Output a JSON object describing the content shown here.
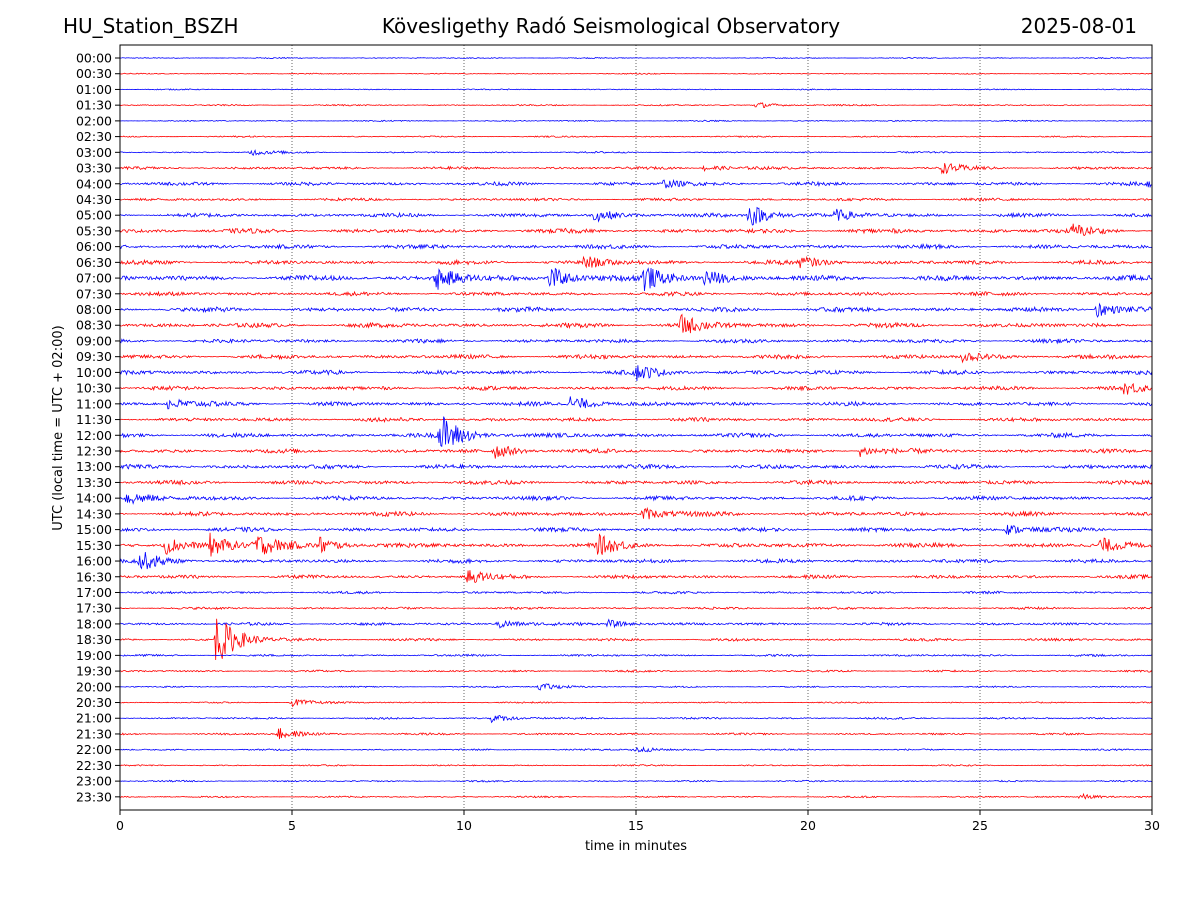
{
  "header": {
    "station": "HU_Station_BSZH",
    "title": "Kövesligethy Radó Seismological Observatory",
    "date": "2025-08-01"
  },
  "chart_data": {
    "type": "line",
    "title": "Kövesligethy Radó Seismological Observatory",
    "xlabel": "time in minutes",
    "ylabel": "UTC (local time = UTC + 02:00)",
    "xlim": [
      0,
      30
    ],
    "x_ticks": [
      0,
      5,
      10,
      15,
      20,
      25,
      30
    ],
    "grid": "vertical dotted at x ticks",
    "colors": [
      "#0000ff",
      "#ff0000"
    ],
    "rows": [
      "00:00",
      "00:30",
      "01:00",
      "01:30",
      "02:00",
      "02:30",
      "03:00",
      "03:30",
      "04:00",
      "04:30",
      "05:00",
      "05:30",
      "06:00",
      "06:30",
      "07:00",
      "07:30",
      "08:00",
      "08:30",
      "09:00",
      "09:30",
      "10:00",
      "10:30",
      "11:00",
      "11:30",
      "12:00",
      "12:30",
      "13:00",
      "13:30",
      "14:00",
      "14:30",
      "15:00",
      "15:30",
      "16:00",
      "16:30",
      "17:00",
      "17:30",
      "18:00",
      "18:30",
      "19:00",
      "19:30",
      "20:00",
      "20:30",
      "21:00",
      "21:30",
      "22:00",
      "22:30",
      "23:00",
      "23:30"
    ],
    "noise_level": [
      0.6,
      0.6,
      0.6,
      0.8,
      0.7,
      0.8,
      0.9,
      1.5,
      2.0,
      1.6,
      2.2,
      2.5,
      2.4,
      2.4,
      3.0,
      2.2,
      2.6,
      2.6,
      2.2,
      2.4,
      2.4,
      2.2,
      2.3,
      2.2,
      2.4,
      2.3,
      2.4,
      2.3,
      2.4,
      2.5,
      2.3,
      2.6,
      2.2,
      2.0,
      1.4,
      1.3,
      1.6,
      1.5,
      1.2,
      1.1,
      0.8,
      0.8,
      1.1,
      1.1,
      0.9,
      0.8,
      0.9,
      0.9
    ],
    "events": [
      {
        "row": "01:30",
        "minute": 18.5,
        "amp": 3
      },
      {
        "row": "03:00",
        "minute": 3.8,
        "amp": 3
      },
      {
        "row": "03:30",
        "minute": 17.0,
        "amp": 4
      },
      {
        "row": "03:30",
        "minute": 23.9,
        "amp": 5
      },
      {
        "row": "04:00",
        "minute": 15.8,
        "amp": 4
      },
      {
        "row": "04:00",
        "minute": 29.9,
        "amp": 5
      },
      {
        "row": "05:00",
        "minute": 13.8,
        "amp": 6
      },
      {
        "row": "05:00",
        "minute": 18.3,
        "amp": 12
      },
      {
        "row": "05:00",
        "minute": 20.8,
        "amp": 5
      },
      {
        "row": "05:30",
        "minute": 27.7,
        "amp": 6
      },
      {
        "row": "06:30",
        "minute": 13.5,
        "amp": 6
      },
      {
        "row": "06:30",
        "minute": 19.8,
        "amp": 6
      },
      {
        "row": "07:00",
        "minute": 9.2,
        "amp": 12
      },
      {
        "row": "07:00",
        "minute": 12.5,
        "amp": 12
      },
      {
        "row": "07:00",
        "minute": 15.2,
        "amp": 13
      },
      {
        "row": "07:00",
        "minute": 17.0,
        "amp": 8
      },
      {
        "row": "08:00",
        "minute": 28.4,
        "amp": 8
      },
      {
        "row": "08:30",
        "minute": 16.3,
        "amp": 10
      },
      {
        "row": "09:30",
        "minute": 24.5,
        "amp": 5
      },
      {
        "row": "10:00",
        "minute": 15.0,
        "amp": 7
      },
      {
        "row": "10:30",
        "minute": 29.2,
        "amp": 6
      },
      {
        "row": "11:00",
        "minute": 1.4,
        "amp": 6
      },
      {
        "row": "11:00",
        "minute": 13.1,
        "amp": 9
      },
      {
        "row": "12:00",
        "minute": 9.3,
        "amp": 22
      },
      {
        "row": "12:30",
        "minute": 10.9,
        "amp": 7
      },
      {
        "row": "12:30",
        "minute": 21.5,
        "amp": 6
      },
      {
        "row": "14:00",
        "minute": 0.2,
        "amp": 7
      },
      {
        "row": "14:30",
        "minute": 15.2,
        "amp": 7
      },
      {
        "row": "15:00",
        "minute": 25.8,
        "amp": 5
      },
      {
        "row": "15:30",
        "minute": 1.3,
        "amp": 9
      },
      {
        "row": "15:30",
        "minute": 2.6,
        "amp": 11
      },
      {
        "row": "15:30",
        "minute": 3.9,
        "amp": 12
      },
      {
        "row": "15:30",
        "minute": 5.8,
        "amp": 8
      },
      {
        "row": "15:30",
        "minute": 13.9,
        "amp": 9
      },
      {
        "row": "15:30",
        "minute": 28.5,
        "amp": 7
      },
      {
        "row": "16:00",
        "minute": 0.6,
        "amp": 9
      },
      {
        "row": "16:30",
        "minute": 10.1,
        "amp": 7
      },
      {
        "row": "18:00",
        "minute": 11.0,
        "amp": 5
      },
      {
        "row": "18:00",
        "minute": 14.2,
        "amp": 4
      },
      {
        "row": "18:30",
        "minute": 2.8,
        "amp": 26
      },
      {
        "row": "20:00",
        "minute": 12.2,
        "amp": 4
      },
      {
        "row": "20:30",
        "minute": 5.0,
        "amp": 4
      },
      {
        "row": "21:00",
        "minute": 10.8,
        "amp": 4
      },
      {
        "row": "21:30",
        "minute": 4.6,
        "amp": 6
      },
      {
        "row": "22:00",
        "minute": 14.9,
        "amp": 4
      },
      {
        "row": "23:30",
        "minute": 27.9,
        "amp": 3
      }
    ]
  }
}
